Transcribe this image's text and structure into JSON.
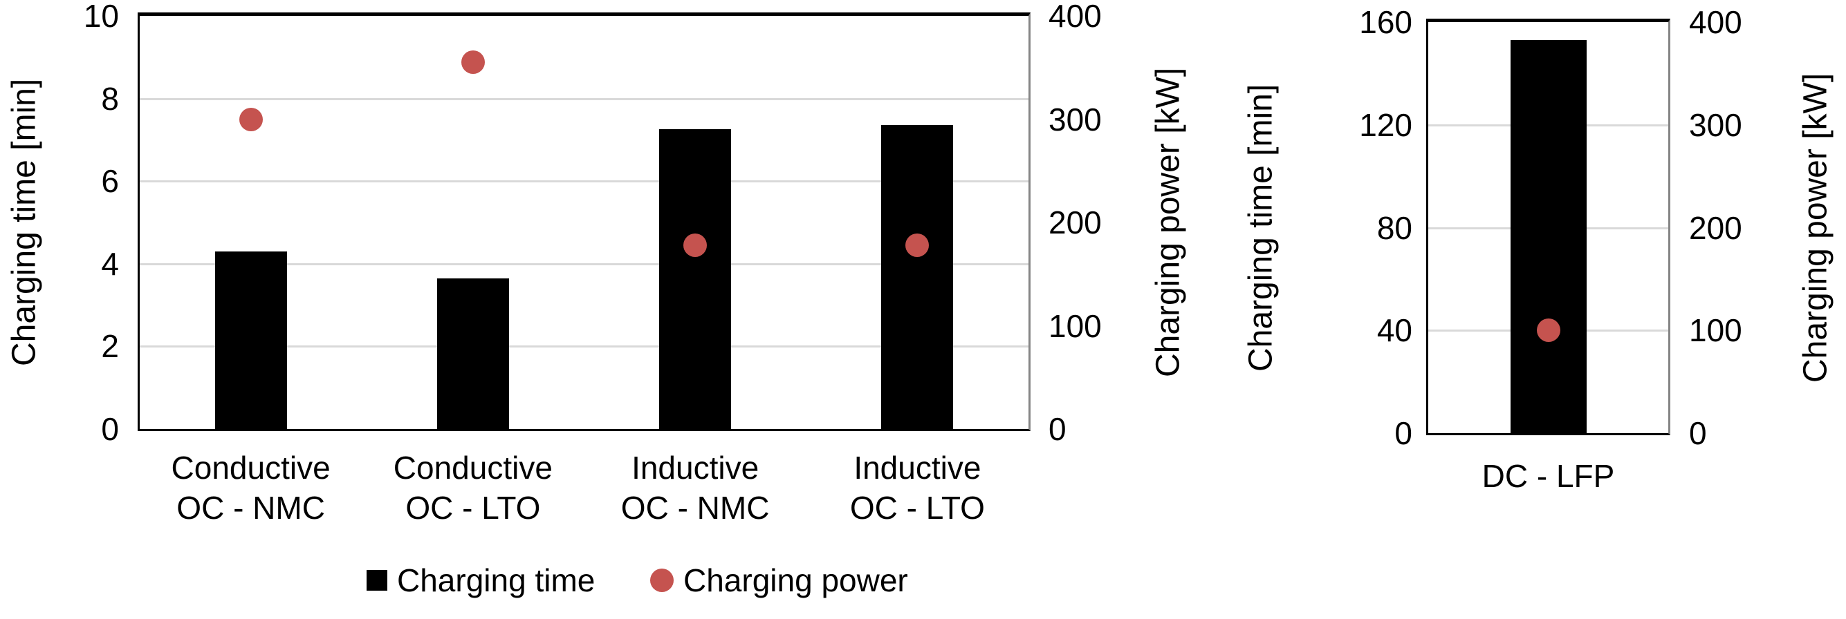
{
  "page": {
    "background": "#FFFFFF"
  },
  "colors": {
    "bar": "#000000",
    "marker": "#C5534F",
    "gridline": "#D9D9D9",
    "axis_border": "#000000"
  },
  "legend": {
    "items": [
      {
        "label": "Charging time",
        "marker": "square",
        "color": "#000000"
      },
      {
        "label": "Charging power",
        "marker": "circle",
        "color": "#C5534F"
      }
    ]
  },
  "chart_data": [
    {
      "type": "bar",
      "subtype": "bar + scatter combo, dual y-axis",
      "categories": [
        "Conductive\nOC - NMC",
        "Conductive\nOC - LTO",
        "Inductive\nOC - NMC",
        "Inductive\nOC - LTO"
      ],
      "series": [
        {
          "name": "Charging time",
          "type": "bar",
          "axis": "left",
          "unit": "min",
          "values": [
            4.3,
            3.65,
            7.25,
            7.35
          ]
        },
        {
          "name": "Charging power",
          "type": "scatter",
          "axis": "right",
          "unit": "kW",
          "values": [
            300,
            355,
            178,
            178
          ]
        }
      ],
      "left_axis": {
        "label": "Charging time [min]",
        "min": 0,
        "max": 10,
        "ticks": [
          0,
          2,
          4,
          6,
          8,
          10
        ]
      },
      "right_axis": {
        "label": "Charging power [kW]",
        "min": 0,
        "max": 400,
        "ticks": [
          0,
          100,
          200,
          300,
          400
        ]
      },
      "grid": true,
      "legend_position": "bottom"
    },
    {
      "type": "bar",
      "subtype": "bar + scatter combo, dual y-axis",
      "categories": [
        "DC - LFP"
      ],
      "series": [
        {
          "name": "Charging time",
          "type": "bar",
          "axis": "left",
          "unit": "min",
          "values": [
            153
          ]
        },
        {
          "name": "Charging power",
          "type": "scatter",
          "axis": "right",
          "unit": "kW",
          "values": [
            100
          ]
        }
      ],
      "left_axis": {
        "label": "Charging time [min]",
        "min": 0,
        "max": 160,
        "ticks": [
          0,
          40,
          80,
          120,
          160
        ]
      },
      "right_axis": {
        "label": "Charging power [kW]",
        "min": 0,
        "max": 400,
        "ticks": [
          0,
          100,
          200,
          300,
          400
        ]
      },
      "grid": true,
      "legend_position": "none"
    }
  ]
}
